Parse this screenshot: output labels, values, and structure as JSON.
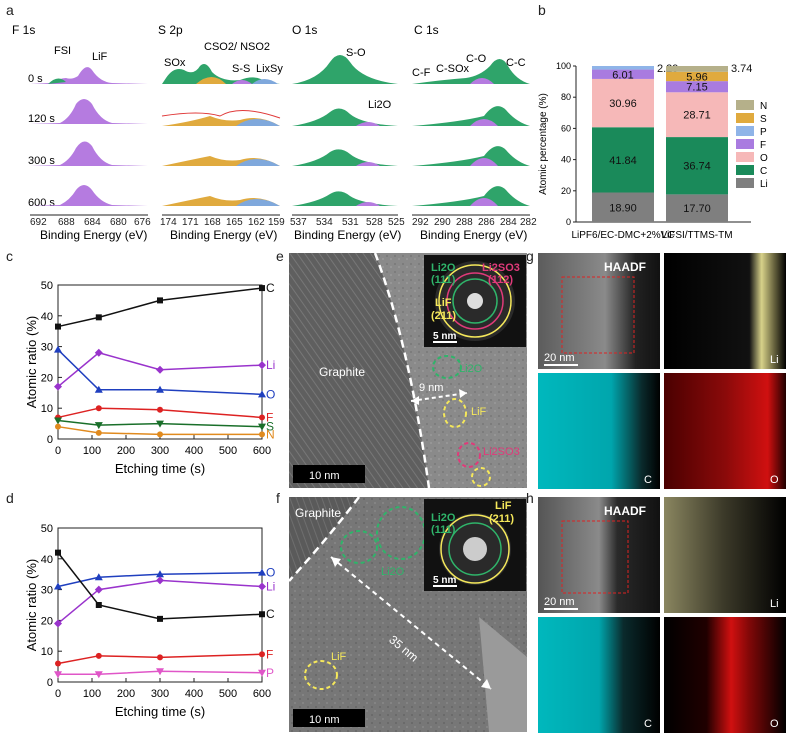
{
  "panel_labels": {
    "a": "a",
    "b": "b",
    "c": "c",
    "d": "d",
    "e": "e",
    "f": "f",
    "g": "g",
    "h": "h"
  },
  "xps": {
    "titles": [
      "F 1s",
      "S 2p",
      "O 1s",
      "C 1s"
    ],
    "times": [
      "0 s",
      "120 s",
      "300 s",
      "600 s"
    ],
    "xlabel": "Binding Energy (eV)",
    "ticks": [
      [
        "692",
        "688",
        "684",
        "680",
        "676"
      ],
      [
        "174",
        "171",
        "168",
        "165",
        "162",
        "159"
      ],
      [
        "537",
        "534",
        "531",
        "528",
        "525"
      ],
      [
        "292",
        "290",
        "288",
        "286",
        "284",
        "282"
      ]
    ],
    "peak_labels": {
      "F": [
        "FSI",
        "LiF"
      ],
      "S": [
        "SOx",
        "CSO2/ NSO2",
        "S-S",
        "LixSy"
      ],
      "O": [
        "S-O",
        "Li2O"
      ],
      "C": [
        "C-F",
        "C-SOx",
        "C-O",
        "C-C"
      ]
    }
  },
  "chart_data": [
    {
      "type": "bar",
      "panel": "b",
      "stacked": true,
      "categories": [
        "LiPF6/EC-DMC+2%VC",
        "LiFSI/TTMS-TM"
      ],
      "ylabel": "Atomic percentage (%)",
      "ylim": [
        0,
        100
      ],
      "yticks": [
        "0",
        "20",
        "40",
        "60",
        "80",
        "100"
      ],
      "series": [
        {
          "name": "Li",
          "color": "#7f7f7f",
          "values": [
            18.9,
            17.7
          ]
        },
        {
          "name": "C",
          "color": "#1a8a5a",
          "values": [
            41.84,
            36.74
          ]
        },
        {
          "name": "O",
          "color": "#f6b8b8",
          "values": [
            30.96,
            28.71
          ]
        },
        {
          "name": "F",
          "color": "#a97be0",
          "values": [
            6.01,
            7.15
          ]
        },
        {
          "name": "P",
          "color": "#8fb4e8",
          "values": [
            2.29,
            0
          ]
        },
        {
          "name": "S",
          "color": "#e0aa3e",
          "values": [
            0,
            5.96
          ]
        },
        {
          "name": "N",
          "color": "#b5b08a",
          "values": [
            0,
            3.74
          ]
        }
      ],
      "labels_shown": [
        [
          "18.90",
          "41.84",
          "30.96",
          "6.01",
          "2.29"
        ],
        [
          "17.70",
          "36.74",
          "28.71",
          "7.15",
          "5.96",
          "3.74"
        ]
      ],
      "legend": [
        "N",
        "S",
        "P",
        "F",
        "O",
        "C",
        "Li"
      ]
    },
    {
      "type": "line",
      "panel": "c",
      "xlabel": "Etching time (s)",
      "ylabel": "Atomic ratio (%)",
      "x": [
        0,
        120,
        300,
        600
      ],
      "xlim": [
        0,
        600
      ],
      "ylim": [
        0,
        50
      ],
      "xticks": [
        "0",
        "100",
        "200",
        "300",
        "400",
        "500",
        "600"
      ],
      "yticks": [
        "0",
        "10",
        "20",
        "30",
        "40",
        "50"
      ],
      "series": [
        {
          "name": "C",
          "color": "#111111",
          "marker": "square",
          "values": [
            36.5,
            39.5,
            45,
            49
          ]
        },
        {
          "name": "Li",
          "color": "#9933cc",
          "marker": "diamond",
          "values": [
            17,
            28,
            22.5,
            24
          ]
        },
        {
          "name": "O",
          "color": "#1f3fbf",
          "marker": "triangle",
          "values": [
            29,
            16,
            16,
            14.5
          ]
        },
        {
          "name": "F",
          "color": "#dd2222",
          "marker": "circle",
          "values": [
            7,
            10,
            9.5,
            7
          ]
        },
        {
          "name": "S",
          "color": "#1a6f2a",
          "marker": "triangle-down",
          "values": [
            6,
            4.5,
            5,
            4
          ]
        },
        {
          "name": "N",
          "color": "#e08a1e",
          "marker": "circle",
          "values": [
            4,
            2,
            1.5,
            1.5
          ]
        }
      ]
    },
    {
      "type": "line",
      "panel": "d",
      "xlabel": "Etching time (s)",
      "ylabel": "Atomic ratio (%)",
      "x": [
        0,
        120,
        300,
        600
      ],
      "xlim": [
        0,
        600
      ],
      "ylim": [
        0,
        50
      ],
      "xticks": [
        "0",
        "100",
        "200",
        "300",
        "400",
        "500",
        "600"
      ],
      "yticks": [
        "0",
        "10",
        "20",
        "30",
        "40",
        "50"
      ],
      "series": [
        {
          "name": "O",
          "color": "#1f3fbf",
          "marker": "triangle",
          "values": [
            31,
            34,
            35,
            35.5
          ]
        },
        {
          "name": "Li",
          "color": "#9933cc",
          "marker": "diamond",
          "values": [
            19,
            30,
            33,
            31
          ]
        },
        {
          "name": "C",
          "color": "#111111",
          "marker": "square",
          "values": [
            42,
            25,
            20.5,
            22
          ]
        },
        {
          "name": "F",
          "color": "#dd2222",
          "marker": "circle",
          "values": [
            6,
            8.5,
            8,
            9
          ]
        },
        {
          "name": "P",
          "color": "#e056c8",
          "marker": "triangle-down",
          "values": [
            2.5,
            2.5,
            3.5,
            3
          ]
        }
      ]
    }
  ],
  "tem_e": {
    "graphite": "Graphite",
    "scale": "10 nm",
    "thickness": "9 nm",
    "lif": "LiF",
    "li2o": "Li2O",
    "li2so3": "Li2SO3",
    "fft_li2o": "Li2O",
    "fft_li2o_hkl": "(111)",
    "fft_li2so3": "Li2SO3",
    "fft_li2so3_hkl": "(112)",
    "fft_lif": "LiF",
    "fft_lif_hkl": "(211)",
    "fft_scale": "5 nm"
  },
  "tem_f": {
    "graphite": "Graphite",
    "scale": "10 nm",
    "thickness": "35 nm",
    "lif": "LiF",
    "li2o": "Li2O",
    "fft_li2o": "Li2O",
    "fft_li2o_hkl": "(111)",
    "fft_lif": "LiF",
    "fft_lif_hkl": "(211)",
    "fft_scale": "5 nm"
  },
  "eds_g": {
    "haadf": "HAADF",
    "scale": "20 nm",
    "li": "Li",
    "c": "C",
    "o": "O"
  },
  "eds_h": {
    "haadf": "HAADF",
    "scale": "20 nm",
    "li": "Li",
    "c": "C",
    "o": "O"
  }
}
